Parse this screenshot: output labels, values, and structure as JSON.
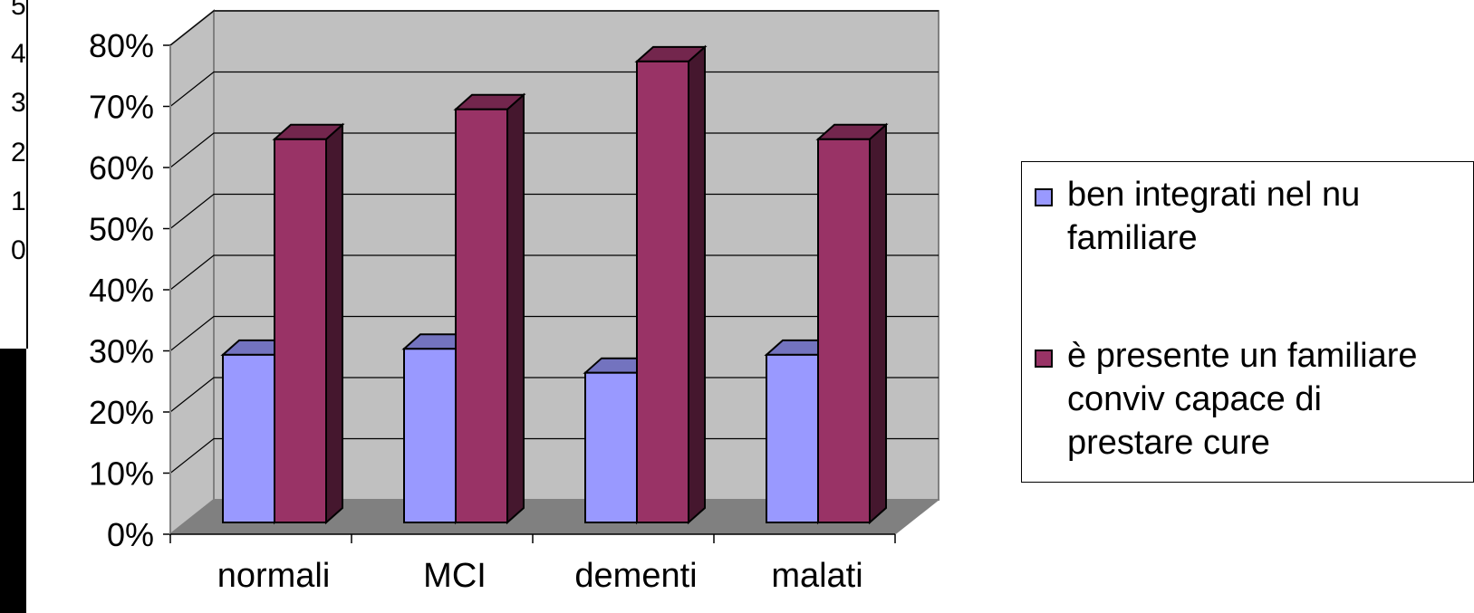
{
  "chart_data": {
    "type": "bar",
    "categories": [
      "normali",
      "MCI",
      "dementi",
      "malati"
    ],
    "series": [
      {
        "name": "ben integrati nel nu familiare",
        "values": [
          28,
          29,
          25,
          28
        ],
        "color": "#9999ff"
      },
      {
        "name": "è presente un familiare conviv capace di prestare cure",
        "values": [
          64,
          69,
          77,
          64
        ],
        "color": "#993366"
      }
    ],
    "ylim": [
      0,
      80
    ],
    "yticks": [
      "0%",
      "10%",
      "20%",
      "30%",
      "40%",
      "50%",
      "60%",
      "70%",
      "80%"
    ],
    "grid": true,
    "legend_position": "right",
    "style": "3d-clustered-column"
  },
  "legend": {
    "items": [
      {
        "label": "ben integrati nel nu\nfamiliare"
      },
      {
        "label": "è presente un familiare\nconviv capace di\nprestare cure"
      }
    ]
  },
  "left_fragment": [
    "5",
    "4",
    "3",
    "2",
    "1",
    "0"
  ]
}
